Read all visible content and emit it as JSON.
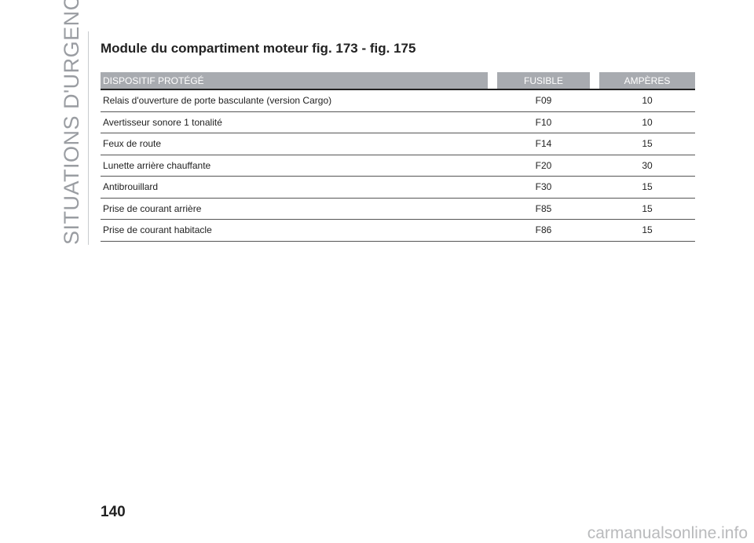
{
  "side_title": "SITUATIONS D'URGENCE",
  "title": "Module du compartiment moteur fig. 173 - fig. 175",
  "table": {
    "headers": [
      "DISPOSITIF PROTÉGÉ",
      "FUSIBLE",
      "AMPÈRES"
    ],
    "rows": [
      [
        "Relais d'ouverture de porte basculante (version Cargo)",
        "F09",
        "10"
      ],
      [
        "Avertisseur sonore 1 tonalité",
        "F10",
        "10"
      ],
      [
        "Feux de route",
        "F14",
        "15"
      ],
      [
        "Lunette arrière chauffante",
        "F20",
        "30"
      ],
      [
        "Antibrouillard",
        "F30",
        "15"
      ],
      [
        "Prise de courant arrière",
        "F85",
        "15"
      ],
      [
        "Prise de courant habitacle",
        "F86",
        "15"
      ]
    ]
  },
  "page_number": "140",
  "watermark": "carmanualsonline.info"
}
